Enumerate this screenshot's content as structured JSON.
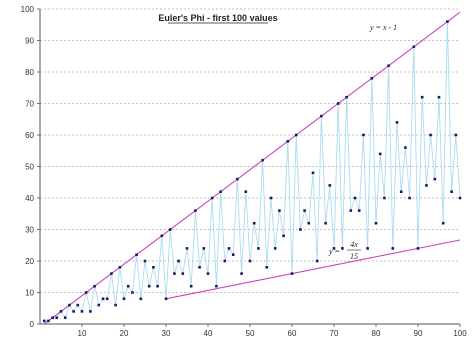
{
  "chart_data": {
    "type": "scatter",
    "title": "Euler's Phi - first 100 values",
    "xlim": [
      0,
      100
    ],
    "ylim": [
      0,
      100
    ],
    "x_ticks": [
      10,
      20,
      30,
      40,
      50,
      60,
      70,
      80,
      90,
      100
    ],
    "y_ticks": [
      0,
      10,
      20,
      30,
      40,
      50,
      60,
      70,
      80,
      90,
      100
    ],
    "grid": "horizontal-dashed",
    "colors": {
      "points": "#1a1a66",
      "line": "#aadcf0",
      "upper_bound": "#cc44bb",
      "lower_bound": "#cc44bb",
      "grid": "#888888"
    },
    "n": [
      1,
      2,
      3,
      4,
      5,
      6,
      7,
      8,
      9,
      10,
      11,
      12,
      13,
      14,
      15,
      16,
      17,
      18,
      19,
      20,
      21,
      22,
      23,
      24,
      25,
      26,
      27,
      28,
      29,
      30,
      31,
      32,
      33,
      34,
      35,
      36,
      37,
      38,
      39,
      40,
      41,
      42,
      43,
      44,
      45,
      46,
      47,
      48,
      49,
      50,
      51,
      52,
      53,
      54,
      55,
      56,
      57,
      58,
      59,
      60,
      61,
      62,
      63,
      64,
      65,
      66,
      67,
      68,
      69,
      70,
      71,
      72,
      73,
      74,
      75,
      76,
      77,
      78,
      79,
      80,
      81,
      82,
      83,
      84,
      85,
      86,
      87,
      88,
      89,
      90,
      91,
      92,
      93,
      94,
      95,
      96,
      97,
      98,
      99,
      100
    ],
    "phi": [
      1,
      1,
      2,
      2,
      4,
      2,
      6,
      4,
      6,
      4,
      10,
      4,
      12,
      6,
      8,
      8,
      16,
      6,
      18,
      8,
      12,
      10,
      22,
      8,
      20,
      12,
      18,
      12,
      28,
      8,
      30,
      16,
      20,
      16,
      24,
      12,
      36,
      18,
      24,
      16,
      40,
      12,
      42,
      20,
      24,
      22,
      46,
      16,
      42,
      20,
      32,
      24,
      52,
      18,
      40,
      24,
      36,
      28,
      58,
      16,
      60,
      30,
      36,
      32,
      48,
      20,
      66,
      32,
      44,
      24,
      70,
      24,
      72,
      36,
      40,
      36,
      60,
      24,
      78,
      32,
      54,
      40,
      82,
      24,
      64,
      42,
      56,
      40,
      88,
      24,
      72,
      44,
      60,
      46,
      72,
      32,
      96,
      42,
      60,
      40
    ],
    "upper_bound": {
      "label": "y = x - 1",
      "points": [
        [
          1,
          0
        ],
        [
          100,
          99
        ]
      ]
    },
    "lower_bound": {
      "label_lhs": "y =",
      "label_num": "4x",
      "label_den": "15",
      "points": [
        [
          30,
          8
        ],
        [
          100,
          26.67
        ]
      ]
    }
  }
}
